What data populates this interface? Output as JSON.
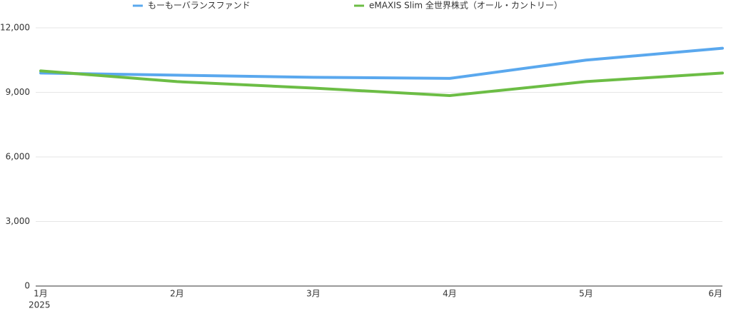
{
  "chart_data": {
    "type": "line",
    "categories": [
      "1月",
      "2月",
      "3月",
      "4月",
      "5月",
      "6月"
    ],
    "x_sublabel": "2025",
    "series": [
      {
        "name": "もーもーバランスファンド",
        "color": "#5aa8ee",
        "values": [
          9900,
          9800,
          9700,
          9650,
          10500,
          11050
        ]
      },
      {
        "name": "eMAXIS Slim 全世界株式（オール・カントリー）",
        "color": "#6cbd45",
        "values": [
          10000,
          9500,
          9200,
          8850,
          9500,
          9900
        ]
      }
    ],
    "ylim": [
      0,
      12000
    ],
    "yticks": [
      0,
      {
        "value": 3000,
        "label": "3,000"
      },
      {
        "value": 6000,
        "label": "6,000"
      },
      {
        "value": 9000,
        "label": "9,000"
      },
      {
        "value": 12000,
        "label": "12,000"
      }
    ],
    "grid": true
  }
}
